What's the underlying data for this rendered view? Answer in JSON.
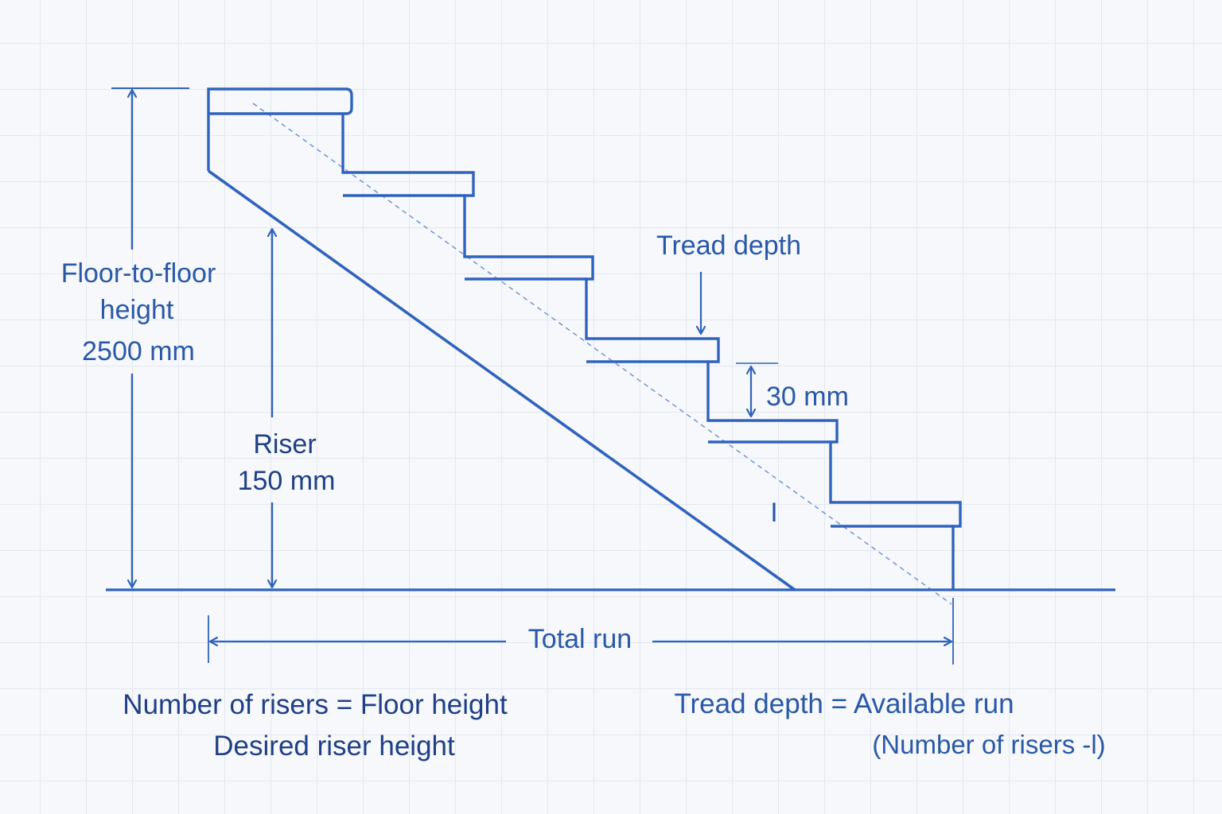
{
  "labels": {
    "floor_height_line1": "Floor-to-floor",
    "floor_height_line2": "height",
    "floor_height_value": "2500 mm",
    "riser_title": "Riser",
    "riser_value": "150 mm",
    "tread_depth": "Tread depth",
    "nosing_value": "30 mm",
    "total_run": "Total run",
    "cursor_glyph": "I"
  },
  "formulas": {
    "risers_numerator": "Number of risers = Floor height",
    "risers_denominator": "Desired riser height",
    "tread_numerator": "Tread depth = Available run",
    "tread_denominator": "(Number of risers -l)"
  },
  "colors": {
    "stroke": "#2f63bd",
    "text": "#2a58a8",
    "text_dark": "#1f3f86",
    "grid": "#e3e8f0",
    "background": "#f6f8fb"
  }
}
